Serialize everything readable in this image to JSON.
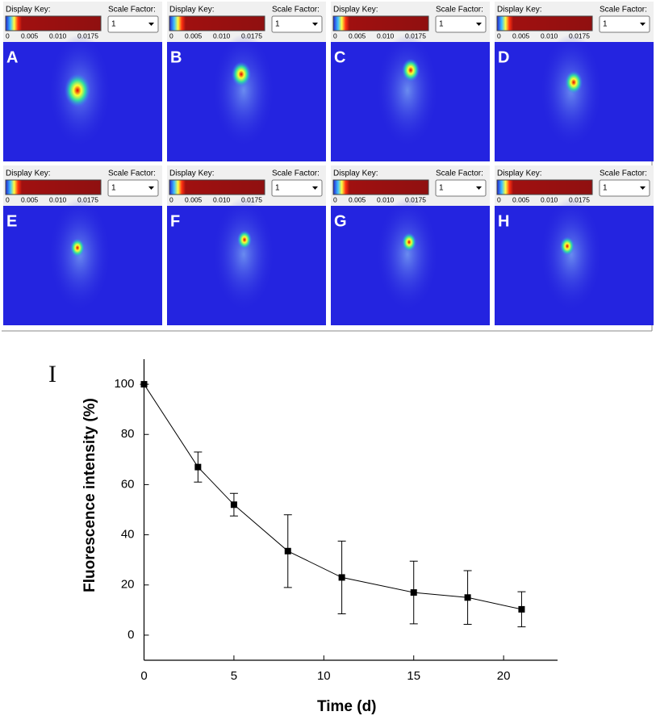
{
  "panels": [
    {
      "letter": "A",
      "display_key": "Display Key:",
      "scale_factor": "Scale Factor:",
      "scale_value": "1",
      "key_ticks": [
        "0",
        "0.005",
        "0.010",
        "0.0175"
      ]
    },
    {
      "letter": "B",
      "display_key": "Display Key:",
      "scale_factor": "Scale Factor:",
      "scale_value": "1",
      "key_ticks": [
        "0",
        "0.005",
        "0.010",
        "0.0175"
      ]
    },
    {
      "letter": "C",
      "display_key": "Display Key:",
      "scale_factor": "Scale Factor:",
      "scale_value": "1",
      "key_ticks": [
        "0",
        "0.005",
        "0.010",
        "0.0175"
      ]
    },
    {
      "letter": "D",
      "display_key": "Display Key:",
      "scale_factor": "Scale Factor:",
      "scale_value": "1",
      "key_ticks": [
        "0",
        "0.005",
        "0.010",
        "0.0175"
      ]
    },
    {
      "letter": "E",
      "display_key": "Display Key:",
      "scale_factor": "Scale Factor:",
      "scale_value": "1",
      "key_ticks": [
        "0",
        "0.005",
        "0.010",
        "0.0175"
      ]
    },
    {
      "letter": "F",
      "display_key": "Display Key:",
      "scale_factor": "Scale Factor:",
      "scale_value": "1",
      "key_ticks": [
        "0",
        "0.005",
        "0.010",
        "0.0175"
      ]
    },
    {
      "letter": "G",
      "display_key": "Display Key:",
      "scale_factor": "Scale Factor:",
      "scale_value": "1",
      "key_ticks": [
        "0",
        "0.005",
        "0.010",
        "0.0175"
      ]
    },
    {
      "letter": "H",
      "display_key": "Display Key:",
      "scale_factor": "Scale Factor:",
      "scale_value": "1",
      "key_ticks": [
        "0",
        "0.005",
        "0.010",
        "0.0175"
      ]
    }
  ],
  "chart_data": {
    "type": "line",
    "panel_label": "I",
    "xlabel": "Time (d)",
    "ylabel": "Fluorescence intensity (%)",
    "x": [
      0,
      3,
      5,
      8,
      11,
      15,
      18,
      21
    ],
    "series": [
      {
        "color": "#000000",
        "values": [
          100,
          67,
          52,
          33.5,
          23,
          17,
          15,
          10.3
        ],
        "errors": [
          0,
          6,
          4.5,
          14.5,
          14.5,
          12.5,
          10.7,
          7
        ]
      }
    ],
    "xlim": [
      0,
      23
    ],
    "ylim": [
      -10,
      110
    ],
    "xticks": [
      0,
      5,
      10,
      15,
      20
    ],
    "yticks": [
      0,
      20,
      40,
      60,
      80,
      100
    ]
  }
}
